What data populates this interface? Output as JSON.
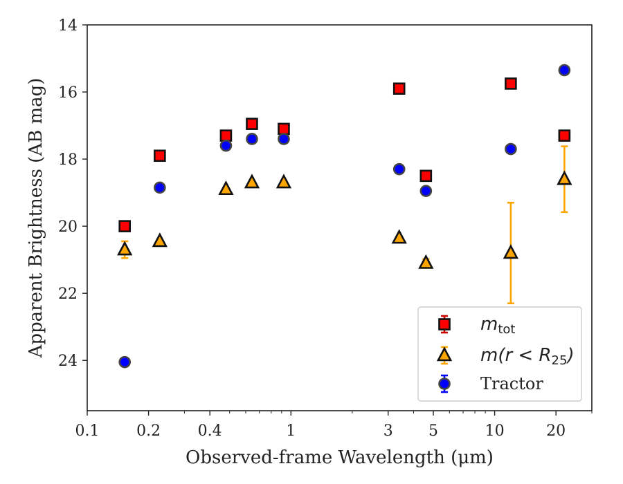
{
  "chart_data": {
    "type": "scatter",
    "title": "",
    "xlabel": "Observed-frame Wavelength (μm)",
    "ylabel": "Apparent Brightness (AB mag)",
    "xscale": "log",
    "xlim": [
      0.1,
      30
    ],
    "ylim": [
      25.5,
      14
    ],
    "y_inverted": true,
    "x_ticks": [
      0.1,
      0.2,
      0.4,
      1,
      3,
      5,
      10,
      20
    ],
    "x_tick_labels": [
      "0.1",
      "0.2",
      "0.4",
      "1",
      "3",
      "5",
      "10",
      "20"
    ],
    "y_ticks": [
      14,
      16,
      18,
      20,
      22,
      24
    ],
    "y_tick_labels": [
      "14",
      "16",
      "18",
      "20",
      "22",
      "24"
    ],
    "grid": false,
    "legend_position": "lower-right",
    "series": [
      {
        "name": "m_tot",
        "legend_text": "m",
        "legend_sub": "tot",
        "marker": "square",
        "color": "#ff0000",
        "errcolor": "#cc0000",
        "points": [
          {
            "x": 0.1528,
            "y": 20.0,
            "err": 0.05
          },
          {
            "x": 0.2271,
            "y": 17.9,
            "err": 0.05
          },
          {
            "x": 0.4798,
            "y": 17.3,
            "err": 0.05
          },
          {
            "x": 0.6436,
            "y": 16.95,
            "err": 0.05
          },
          {
            "x": 0.9223,
            "y": 17.1,
            "err": 0.05
          },
          {
            "x": 3.4,
            "y": 15.9,
            "err": 0.05
          },
          {
            "x": 4.6,
            "y": 18.5,
            "err": 0.05
          },
          {
            "x": 12.0,
            "y": 15.75,
            "err": 0.05
          },
          {
            "x": 22.0,
            "y": 17.3,
            "err": 0.05
          }
        ]
      },
      {
        "name": "m(r < R25)",
        "legend_text": "m(r < R",
        "legend_sub": "25",
        "legend_tail": ")",
        "marker": "triangle",
        "color": "#ffa500",
        "errcolor": "#ffa500",
        "points": [
          {
            "x": 0.1528,
            "y": 20.7,
            "err": 0.25
          },
          {
            "x": 0.2271,
            "y": 20.45,
            "err": 0.05
          },
          {
            "x": 0.4798,
            "y": 18.9,
            "err": 0.05
          },
          {
            "x": 0.6436,
            "y": 18.7,
            "err": 0.05
          },
          {
            "x": 0.9223,
            "y": 18.7,
            "err": 0.05
          },
          {
            "x": 3.4,
            "y": 20.35,
            "err": 0.05
          },
          {
            "x": 4.6,
            "y": 21.1,
            "err": 0.12
          },
          {
            "x": 12.0,
            "y": 20.8,
            "err": 1.5
          },
          {
            "x": 22.0,
            "y": 18.6,
            "err": 0.98
          }
        ]
      },
      {
        "name": "Tractor",
        "legend_text": "Tractor",
        "marker": "circle",
        "color": "#0000ff",
        "errcolor": "#0000ff",
        "points": [
          {
            "x": 0.1528,
            "y": 24.05,
            "err": 0.05
          },
          {
            "x": 0.2271,
            "y": 18.85,
            "err": 0.05
          },
          {
            "x": 0.4798,
            "y": 17.6,
            "err": 0.05
          },
          {
            "x": 0.6436,
            "y": 17.4,
            "err": 0.05
          },
          {
            "x": 0.9223,
            "y": 17.4,
            "err": 0.05
          },
          {
            "x": 3.4,
            "y": 18.3,
            "err": 0.05
          },
          {
            "x": 4.6,
            "y": 18.95,
            "err": 0.05
          },
          {
            "x": 12.0,
            "y": 17.7,
            "err": 0.05
          },
          {
            "x": 22.0,
            "y": 15.35,
            "err": 0.05
          }
        ]
      }
    ]
  }
}
